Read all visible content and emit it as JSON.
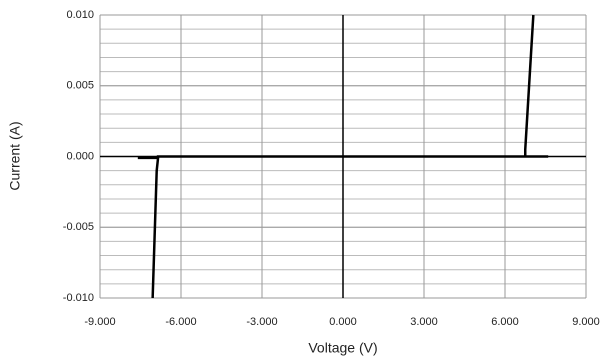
{
  "chart_data": {
    "type": "line",
    "x_label": "Voltage (V)",
    "y_label": "Current (A)",
    "x": [
      -7.6,
      -6.85,
      null,
      -7.05,
      -6.9,
      -6.85,
      -6.85,
      6.75,
      6.75,
      7.05,
      null,
      6.75,
      7.6
    ],
    "values": [
      -0.0001,
      -0.0001,
      null,
      -0.01,
      -0.001,
      -0.0001,
      0,
      0,
      0.0005,
      0.01,
      null,
      0,
      0
    ],
    "color": "#000000",
    "xlim": [
      -9,
      9
    ],
    "xticks": [
      {
        "value": -9,
        "label": "-9.000"
      },
      {
        "value": -6,
        "label": "-6.000"
      },
      {
        "value": -3,
        "label": "-3.000"
      },
      {
        "value": 0,
        "label": "0.000"
      },
      {
        "value": 3,
        "label": "3.000"
      },
      {
        "value": 6,
        "label": "6.000"
      },
      {
        "value": 9,
        "label": "9.000"
      }
    ],
    "ylim": [
      -0.01,
      0.01
    ],
    "yticks": [
      {
        "value": -0.01,
        "label": "-0.010"
      },
      {
        "value": -0.005,
        "label": "-0.005"
      },
      {
        "value": 0,
        "label": "0.000"
      },
      {
        "value": 0.005,
        "label": "0.005"
      },
      {
        "value": 0.01,
        "label": "0.010"
      }
    ],
    "grid": true,
    "y_minor_grid_step": 0.001
  }
}
